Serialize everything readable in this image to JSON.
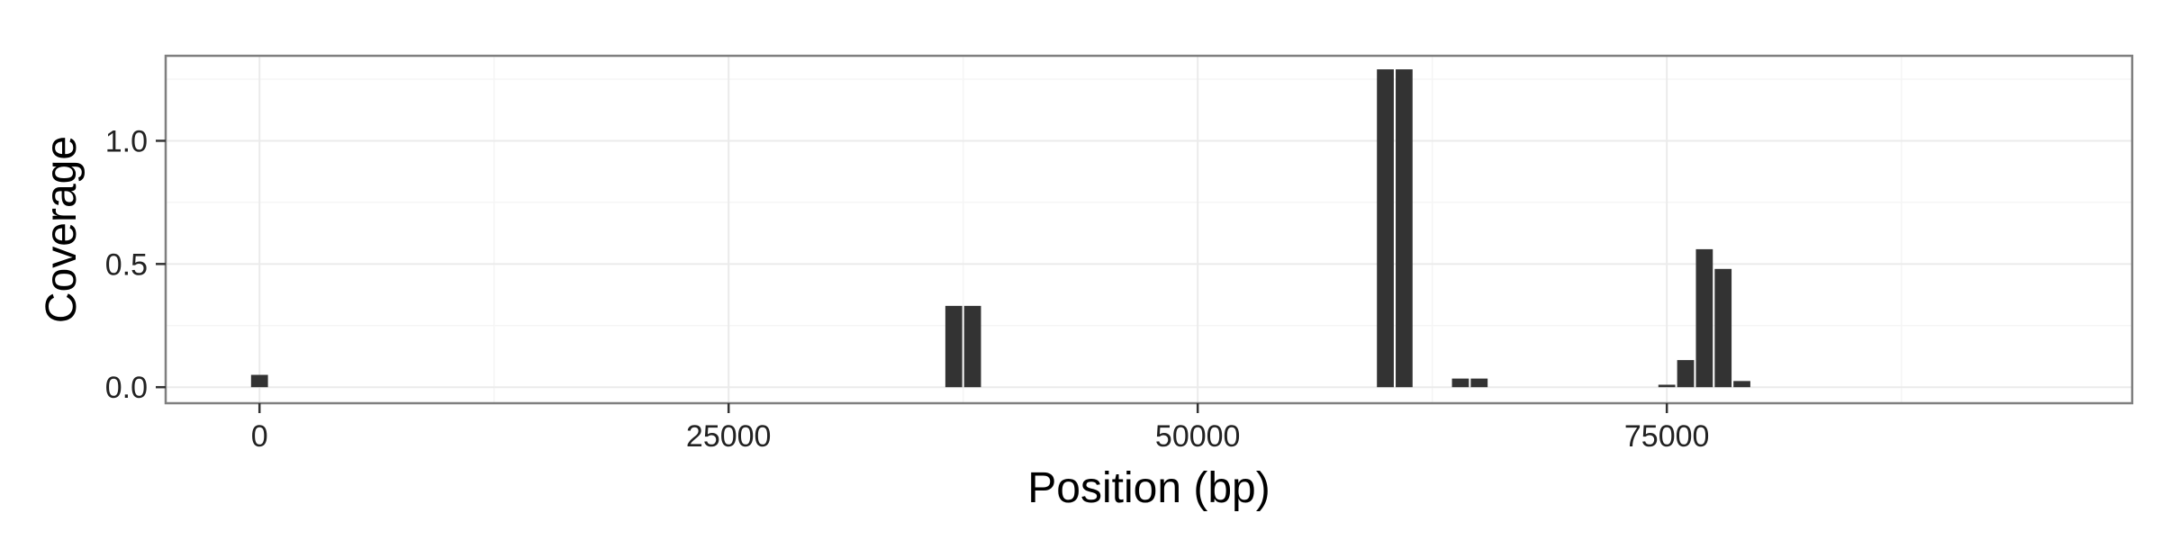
{
  "chart_data": {
    "type": "bar",
    "xlabel": "Position (bp)",
    "ylabel": "Coverage",
    "xlim": [
      -5000,
      99800
    ],
    "ylim": [
      -0.065,
      1.345
    ],
    "x_ticks": [
      {
        "value": 0,
        "label": "0"
      },
      {
        "value": 25000,
        "label": "25000"
      },
      {
        "value": 50000,
        "label": "50000"
      },
      {
        "value": 75000,
        "label": "75000"
      }
    ],
    "y_ticks": [
      {
        "value": 0.0,
        "label": "0.0"
      },
      {
        "value": 0.5,
        "label": "0.5"
      },
      {
        "value": 1.0,
        "label": "1.0"
      }
    ],
    "bar_width": 900,
    "bars": [
      {
        "x": 0,
        "y": 0.05
      },
      {
        "x": 37000,
        "y": 0.33
      },
      {
        "x": 38000,
        "y": 0.33
      },
      {
        "x": 60000,
        "y": 1.29
      },
      {
        "x": 61000,
        "y": 1.29
      },
      {
        "x": 64000,
        "y": 0.035
      },
      {
        "x": 65000,
        "y": 0.035
      },
      {
        "x": 75000,
        "y": 0.01
      },
      {
        "x": 76000,
        "y": 0.11
      },
      {
        "x": 77000,
        "y": 0.56
      },
      {
        "x": 78000,
        "y": 0.48
      },
      {
        "x": 79000,
        "y": 0.025
      }
    ],
    "grid": true,
    "colors": {
      "bar": "#333333",
      "panel_border": "#7f7f7f",
      "grid_major": "#ebebeb",
      "grid_minor": "#f5f5f5",
      "tick": "#333333"
    }
  }
}
